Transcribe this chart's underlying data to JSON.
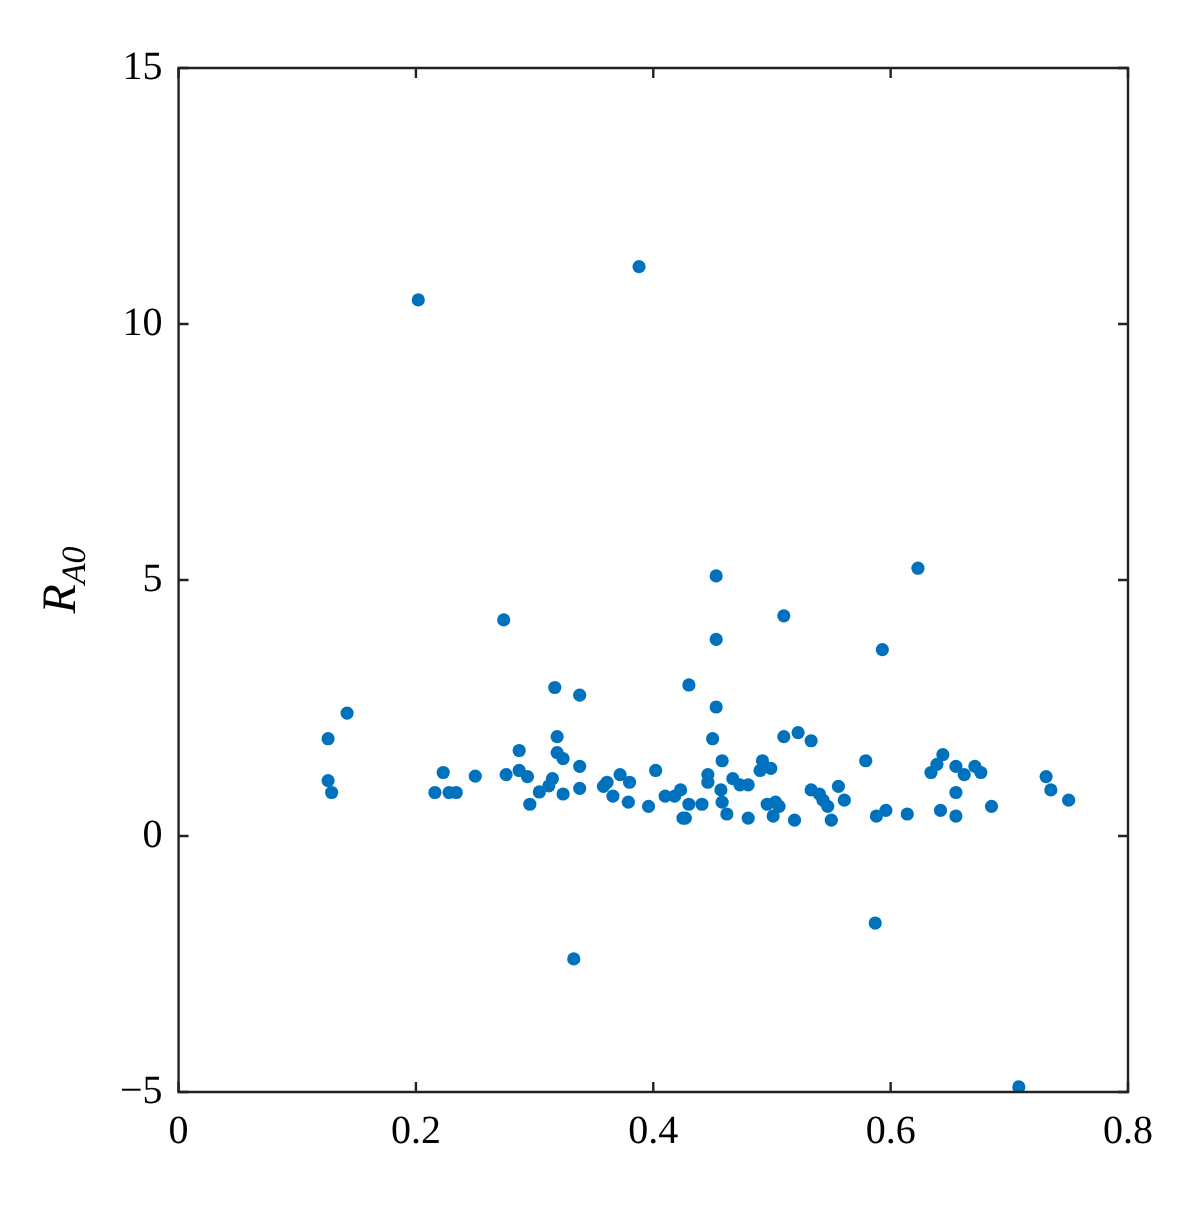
{
  "chart_data": {
    "type": "scatter",
    "ylabel": "R$_{A0}$",
    "marker": "circle",
    "grid": false,
    "xlim": [
      0,
      0.8
    ],
    "xticks": [
      0,
      0.2,
      0.4,
      0.6,
      0.8
    ],
    "ylim": [
      -5,
      15
    ],
    "yticks": [
      {
        "value": -5,
        "label": "−5"
      },
      0,
      5,
      10,
      15
    ],
    "series": [
      {
        "color": "#0072bd",
        "x": [
          0.202,
          0.388,
          0.453,
          0.623,
          0.274,
          0.317,
          0.338,
          0.142,
          0.126,
          0.319,
          0.287,
          0.319,
          0.324,
          0.338,
          0.126,
          0.129,
          0.223,
          0.216,
          0.228,
          0.234,
          0.25,
          0.276,
          0.287,
          0.294,
          0.315,
          0.312,
          0.304,
          0.296,
          0.324,
          0.338,
          0.358,
          0.361,
          0.372,
          0.38,
          0.366,
          0.379,
          0.396,
          0.402,
          0.41,
          0.418,
          0.423,
          0.425,
          0.51,
          0.453,
          0.593,
          0.43,
          0.453,
          0.45,
          0.51,
          0.522,
          0.533,
          0.458,
          0.446,
          0.446,
          0.467,
          0.473,
          0.48,
          0.492,
          0.499,
          0.49,
          0.579,
          0.644,
          0.639,
          0.634,
          0.655,
          0.662,
          0.671,
          0.676,
          0.731,
          0.735,
          0.75,
          0.457,
          0.458,
          0.462,
          0.43,
          0.441,
          0.427,
          0.48,
          0.496,
          0.503,
          0.506,
          0.501,
          0.519,
          0.533,
          0.54,
          0.543,
          0.547,
          0.55,
          0.556,
          0.561,
          0.588,
          0.596,
          0.614,
          0.642,
          0.655,
          0.655,
          0.685,
          0.333,
          0.587,
          0.708
        ],
        "values": [
          10.47,
          11.12,
          5.08,
          5.23,
          4.22,
          2.9,
          2.75,
          2.4,
          1.9,
          1.94,
          1.67,
          1.63,
          1.51,
          1.36,
          1.08,
          0.85,
          1.24,
          0.85,
          0.85,
          0.85,
          1.17,
          1.2,
          1.28,
          1.16,
          1.12,
          0.98,
          0.86,
          0.62,
          0.82,
          0.93,
          0.97,
          1.05,
          1.2,
          1.05,
          0.78,
          0.66,
          0.58,
          1.28,
          0.78,
          0.78,
          0.9,
          0.35,
          4.3,
          3.84,
          3.64,
          2.95,
          2.52,
          1.9,
          1.94,
          2.02,
          1.86,
          1.47,
          1.2,
          1.05,
          1.12,
          1.0,
          1.0,
          1.47,
          1.32,
          1.28,
          1.47,
          1.59,
          1.4,
          1.24,
          1.36,
          1.2,
          1.36,
          1.24,
          1.16,
          0.9,
          0.7,
          0.9,
          0.66,
          0.43,
          0.62,
          0.62,
          0.35,
          0.35,
          0.62,
          0.66,
          0.58,
          0.39,
          0.31,
          0.9,
          0.82,
          0.7,
          0.58,
          0.31,
          0.97,
          0.7,
          0.39,
          0.5,
          0.43,
          0.5,
          0.85,
          0.39,
          0.58,
          -2.4,
          -1.7,
          -4.9
        ]
      }
    ]
  }
}
